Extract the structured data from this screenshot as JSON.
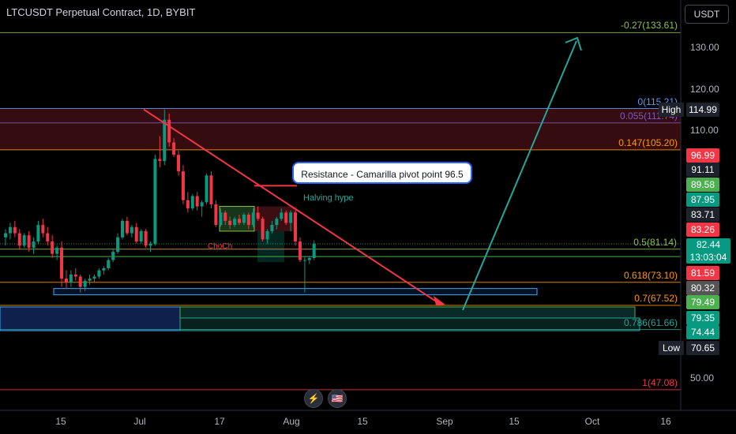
{
  "header": {
    "title": "LTCUSDT Perpetual Contract, 1D, BYBIT"
  },
  "currency_button": "USDT",
  "colors": {
    "up": "#089981",
    "down": "#f23645",
    "background": "#000000",
    "fib_green": "#8bc34a",
    "fib_orange": "#ff9800",
    "trend_red": "#f23645",
    "arrow_teal": "#26a69a"
  },
  "price_axis": {
    "ticks": [
      "130.00",
      "120.00",
      "110.00",
      "50.00"
    ]
  },
  "time_axis": {
    "ticks": [
      "15",
      "Jul",
      "17",
      "Aug",
      "15",
      "Sep",
      "15",
      "Oct",
      "16"
    ]
  },
  "fib_levels": [
    {
      "label": "-0.27(133.61)",
      "value": 133.61,
      "color": "#8bc34a"
    },
    {
      "label": "0(115.21)",
      "value": 115.21,
      "color": "#5b9cf6"
    },
    {
      "label": "0.055(111.74)",
      "value": 111.74,
      "color": "#7e57c2"
    },
    {
      "label": "0.147(105.20)",
      "value": 105.2,
      "color": "#ff9800"
    },
    {
      "label": "0.5(81.14)",
      "value": 81.14,
      "color": "#8bc34a"
    },
    {
      "label": "0.618(73.10)",
      "value": 73.1,
      "color": "#ff9800"
    },
    {
      "label": "0.7(67.52)",
      "value": 67.52,
      "color": "#ff9800"
    },
    {
      "label": "0.786(61.66)",
      "value": 61.66,
      "color": "#26a69a"
    },
    {
      "label": "1(47.08)",
      "value": 47.08,
      "color": "#f23645"
    }
  ],
  "price_tags": [
    {
      "text": "114.99",
      "bg": "#1e222d",
      "label": "High"
    },
    {
      "text": "96.99",
      "bg": "#f23645"
    },
    {
      "text": "91.11",
      "bg": "#1e222d"
    },
    {
      "text": "89.58",
      "bg": "#4caf50"
    },
    {
      "text": "87.95",
      "bg": "#089981"
    },
    {
      "text": "83.71",
      "bg": "#1e222d"
    },
    {
      "text": "83.26",
      "bg": "#f23645"
    },
    {
      "text": "82.44",
      "bg": "#089981",
      "sub": "13:03:04"
    },
    {
      "text": "81.59",
      "bg": "#f23645"
    },
    {
      "text": "80.32",
      "bg": "#555555"
    },
    {
      "text": "79.49",
      "bg": "#4caf50"
    },
    {
      "text": "79.35",
      "bg": "#089981"
    },
    {
      "text": "74.44",
      "bg": "#089981"
    },
    {
      "text": "70.65",
      "bg": "#1e222d",
      "label": "Low"
    }
  ],
  "annotations": {
    "callout": "Resistance - Camarilla pivot point 96.5",
    "halving": "Halving hype",
    "choch": "ChoCh"
  },
  "bottom_icons": [
    {
      "name": "lightning-icon",
      "glyph": "⚡"
    },
    {
      "name": "us-flag-icon",
      "glyph": "🇺🇸"
    }
  ],
  "chart_data": {
    "type": "candlestick",
    "title": "LTCUSDT Perpetual Contract, 1D, BYBIT",
    "x_ticks": [
      "15",
      "Jul",
      "17",
      "Aug",
      "15",
      "Sep",
      "15",
      "Oct",
      "16"
    ],
    "y_ticks": [
      130,
      120,
      110,
      50
    ],
    "ylim": [
      45,
      137
    ],
    "candles": [
      [
        84.0,
        86.0,
        82.0,
        85.0
      ],
      [
        85.0,
        87.5,
        83.5,
        86.5
      ],
      [
        86.5,
        88.0,
        84.0,
        85.0
      ],
      [
        85.0,
        86.0,
        81.0,
        82.0
      ],
      [
        82.0,
        85.0,
        81.5,
        84.5
      ],
      [
        84.5,
        85.5,
        80.5,
        81.5
      ],
      [
        81.5,
        84.0,
        80.0,
        83.0
      ],
      [
        83.0,
        88.0,
        82.5,
        87.0
      ],
      [
        87.0,
        88.5,
        84.0,
        85.0
      ],
      [
        85.0,
        86.5,
        82.0,
        83.0
      ],
      [
        83.0,
        84.5,
        79.0,
        80.0
      ],
      [
        80.0,
        82.0,
        78.5,
        81.5
      ],
      [
        81.5,
        83.0,
        72.0,
        74.0
      ],
      [
        74.0,
        76.0,
        71.5,
        73.0
      ],
      [
        73.0,
        76.0,
        72.0,
        75.0
      ],
      [
        75.0,
        76.5,
        73.5,
        74.5
      ],
      [
        74.5,
        75.0,
        70.65,
        72.0
      ],
      [
        72.0,
        74.0,
        71.0,
        73.5
      ],
      [
        73.5,
        75.0,
        72.5,
        74.0
      ],
      [
        74.0,
        75.0,
        73.0,
        74.5
      ],
      [
        74.5,
        76.5,
        74.0,
        76.0
      ],
      [
        76.0,
        77.0,
        75.0,
        76.5
      ],
      [
        76.5,
        79.0,
        76.0,
        78.5
      ],
      [
        78.5,
        81.0,
        78.0,
        80.5
      ],
      [
        80.5,
        85.0,
        80.0,
        84.0
      ],
      [
        84.0,
        88.5,
        83.5,
        88.0
      ],
      [
        88.0,
        89.0,
        84.5,
        85.0
      ],
      [
        85.0,
        87.0,
        84.0,
        86.5
      ],
      [
        86.5,
        87.5,
        82.5,
        83.0
      ],
      [
        83.0,
        86.0,
        82.5,
        85.5
      ],
      [
        85.5,
        86.0,
        81.5,
        82.0
      ],
      [
        82.0,
        83.0,
        80.5,
        82.5
      ],
      [
        82.5,
        104.0,
        82.0,
        103.0
      ],
      [
        103.0,
        108.5,
        101.0,
        102.5
      ],
      [
        102.5,
        114.99,
        101.5,
        112.5
      ],
      [
        112.5,
        114.0,
        106.0,
        107.0
      ],
      [
        107.0,
        108.0,
        103.5,
        104.0
      ],
      [
        104.0,
        105.0,
        99.0,
        100.0
      ],
      [
        100.0,
        101.5,
        92.0,
        93.0
      ],
      [
        93.0,
        95.0,
        90.0,
        91.0
      ],
      [
        91.0,
        94.5,
        90.5,
        94.0
      ],
      [
        94.0,
        95.0,
        90.5,
        91.5
      ],
      [
        91.5,
        93.0,
        89.0,
        92.5
      ],
      [
        92.5,
        99.5,
        92.0,
        99.0
      ],
      [
        99.0,
        100.0,
        91.0,
        92.0
      ],
      [
        92.0,
        93.0,
        86.5,
        87.0
      ],
      [
        87.0,
        91.0,
        86.5,
        90.0
      ],
      [
        90.0,
        90.5,
        87.0,
        88.0
      ],
      [
        88.0,
        89.0,
        86.0,
        87.0
      ],
      [
        87.0,
        89.0,
        86.5,
        88.5
      ],
      [
        88.5,
        89.5,
        87.0,
        87.5
      ],
      [
        87.5,
        90.0,
        87.0,
        89.5
      ],
      [
        89.5,
        90.0,
        86.0,
        87.0
      ],
      [
        87.0,
        91.0,
        86.5,
        90.0
      ],
      [
        90.0,
        91.5,
        88.0,
        88.5
      ],
      [
        88.5,
        89.0,
        83.0,
        83.5
      ],
      [
        83.5,
        86.0,
        82.5,
        85.5
      ],
      [
        85.5,
        88.0,
        85.0,
        87.0
      ],
      [
        87.0,
        89.0,
        86.0,
        88.5
      ],
      [
        88.5,
        91.0,
        88.0,
        90.0
      ],
      [
        90.0,
        90.5,
        87.0,
        87.5
      ],
      [
        87.5,
        90.5,
        85.5,
        90.0
      ],
      [
        90.0,
        90.5,
        82.0,
        83.0
      ],
      [
        83.0,
        84.0,
        78.0,
        78.5
      ],
      [
        78.5,
        79.5,
        70.65,
        78.5
      ],
      [
        78.5,
        79.5,
        77.5,
        79.0
      ],
      [
        79.0,
        83.26,
        78.5,
        82.44
      ]
    ],
    "fib_levels": [
      {
        "ratio": -0.27,
        "value": 133.61
      },
      {
        "ratio": 0,
        "value": 115.21
      },
      {
        "ratio": 0.055,
        "value": 111.74
      },
      {
        "ratio": 0.147,
        "value": 105.2
      },
      {
        "ratio": 0.5,
        "value": 81.14
      },
      {
        "ratio": 0.618,
        "value": 73.1
      },
      {
        "ratio": 0.7,
        "value": 67.52
      },
      {
        "ratio": 0.786,
        "value": 61.66
      },
      {
        "ratio": 1,
        "value": 47.08
      }
    ],
    "high": 114.99,
    "low": 70.65,
    "last_price": 82.44,
    "countdown": "13:03:04"
  }
}
